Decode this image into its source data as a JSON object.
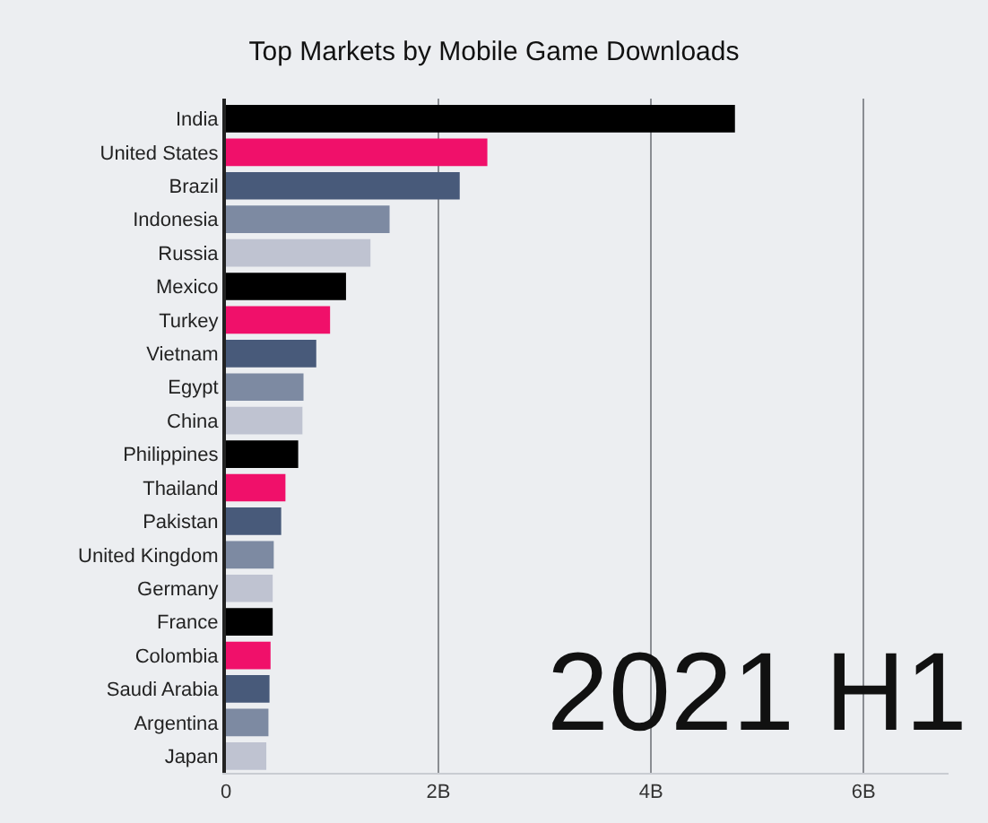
{
  "chart_data": {
    "type": "bar",
    "orientation": "horizontal",
    "title": "Top Markets by Mobile Game Downloads",
    "categories": [
      "India",
      "United States",
      "Brazil",
      "Indonesia",
      "Russia",
      "Mexico",
      "Turkey",
      "Vietnam",
      "Egypt",
      "China",
      "Philippines",
      "Thailand",
      "Pakistan",
      "United Kingdom",
      "Germany",
      "France",
      "Colombia",
      "Saudi Arabia",
      "Argentina",
      "Japan"
    ],
    "values": [
      4.79,
      2.46,
      2.2,
      1.54,
      1.36,
      1.13,
      0.98,
      0.85,
      0.73,
      0.72,
      0.68,
      0.56,
      0.52,
      0.45,
      0.44,
      0.44,
      0.42,
      0.41,
      0.4,
      0.38
    ],
    "colors": [
      "#000000",
      "#f0106a",
      "#485a7a",
      "#7d8aa2",
      "#bfc3d1",
      "#000000",
      "#f0106a",
      "#485a7a",
      "#7d8aa2",
      "#bfc3d1",
      "#000000",
      "#f0106a",
      "#485a7a",
      "#7d8aa2",
      "#bfc3d1",
      "#000000",
      "#f0106a",
      "#485a7a",
      "#7d8aa2",
      "#bfc3d1"
    ],
    "xlim": [
      0,
      6.8
    ],
    "xticks": [
      0,
      {
        "value": 2,
        "label": "2B"
      },
      {
        "value": 4,
        "label": "4B"
      },
      {
        "value": 6,
        "label": "6B"
      }
    ],
    "grid": "x",
    "annotations": [
      "2021 H1"
    ]
  }
}
